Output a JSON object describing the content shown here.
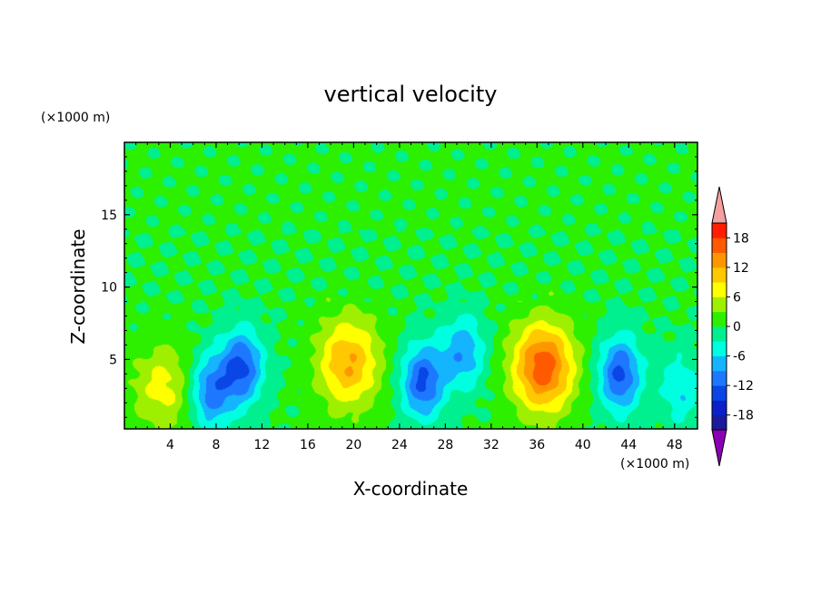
{
  "chart_data": {
    "type": "heatmap",
    "title": "vertical velocity",
    "xlabel": "X-coordinate",
    "ylabel": "Z-coordinate",
    "x_unit": "(×1000 m)",
    "y_unit": "(×1000 m)",
    "xlim": [
      0,
      50
    ],
    "ylim": [
      0.2,
      20
    ],
    "x_ticks": [
      "4",
      "8",
      "12",
      "16",
      "20",
      "24",
      "28",
      "32",
      "36",
      "40",
      "44",
      "48"
    ],
    "x_tick_values": [
      4,
      8,
      12,
      16,
      20,
      24,
      28,
      32,
      36,
      40,
      44,
      48
    ],
    "y_ticks": [
      "5",
      "10",
      "15"
    ],
    "y_tick_values": [
      5,
      10,
      15
    ],
    "colorbar": {
      "labels": [
        "18",
        "12",
        "6",
        "0",
        "-6",
        "-12",
        "-18"
      ],
      "label_values": [
        18,
        12,
        6,
        0,
        -6,
        -12,
        -18
      ],
      "min": -21,
      "max": 21,
      "levels": [
        -21,
        -18,
        -15,
        -12,
        -9,
        -6,
        -3,
        0,
        3,
        6,
        9,
        12,
        15,
        18,
        21
      ],
      "colors": [
        "#6a00a8",
        "#1a1a9c",
        "#0a20c8",
        "#0a46e6",
        "#1e78ff",
        "#14b4ff",
        "#00ffe0",
        "#00f090",
        "#2cf000",
        "#9ef000",
        "#ffff00",
        "#ffc800",
        "#ff9600",
        "#ff5a00",
        "#ff1e00",
        "#f4a0a0"
      ],
      "under_color": "#8a00b4",
      "over_color": "#f4a0a0"
    },
    "features": [
      {
        "kind": "updraft",
        "x": 3.3,
        "z": 3.0,
        "peak": 7
      },
      {
        "kind": "downdraft",
        "x": 7.5,
        "z": 2.8,
        "peak": -11
      },
      {
        "kind": "downdraft",
        "x": 10.2,
        "z": 4.5,
        "peak": -13
      },
      {
        "kind": "updraft",
        "x": 19.5,
        "z": 4.8,
        "peak": 12
      },
      {
        "kind": "downdraft",
        "x": 26.0,
        "z": 3.5,
        "peak": -13
      },
      {
        "kind": "downdraft",
        "x": 29.5,
        "z": 5.5,
        "peak": -9
      },
      {
        "kind": "updraft",
        "x": 36.5,
        "z": 4.5,
        "peak": 17
      },
      {
        "kind": "downdraft",
        "x": 43.2,
        "z": 4.0,
        "peak": -13
      },
      {
        "kind": "downdraft",
        "x": 48.5,
        "z": 3.0,
        "peak": -6
      }
    ]
  }
}
